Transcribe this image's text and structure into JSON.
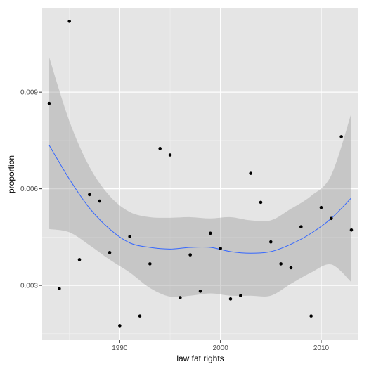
{
  "chart_data": {
    "type": "scatter",
    "title": "",
    "xlabel": "law fat rights",
    "ylabel": "proportion",
    "xlim": [
      1982.3,
      2013.7
    ],
    "ylim": [
      0.0013,
      0.0116
    ],
    "x_ticks": [
      1990,
      2000,
      2010
    ],
    "x_tick_labels": [
      "1990",
      "2000",
      "2010"
    ],
    "y_ticks": [
      0.003,
      0.006,
      0.009
    ],
    "y_tick_labels": [
      "0.003",
      "0.006",
      "0.009"
    ],
    "grid": true,
    "legend": "none",
    "colors": {
      "panel": "#e5e5e5",
      "grid_major": "#ffffff",
      "grid_minor": "#f2f2f2",
      "points": "#000000",
      "smooth_line": "#3366ff",
      "confidence_band": "#999999"
    },
    "points": {
      "x": [
        1983,
        1984,
        1985,
        1986,
        1987,
        1988,
        1989,
        1990,
        1991,
        1992,
        1993,
        1994,
        1995,
        1996,
        1997,
        1998,
        1999,
        2000,
        2001,
        2002,
        2003,
        2004,
        2005,
        2006,
        2007,
        2008,
        2009,
        2010,
        2011,
        2012,
        2013
      ],
      "y": [
        0.00865,
        0.0029,
        0.0112,
        0.0038,
        0.00582,
        0.00562,
        0.00402,
        0.00175,
        0.00452,
        0.00205,
        0.00367,
        0.00725,
        0.00705,
        0.00262,
        0.00395,
        0.00282,
        0.00462,
        0.00415,
        0.00258,
        0.00268,
        0.00648,
        0.00558,
        0.00435,
        0.00367,
        0.00355,
        0.00482,
        0.00205,
        0.00542,
        0.00508,
        0.00762,
        0.00472
      ]
    },
    "smooth": {
      "x": [
        1983,
        1985,
        1987,
        1989,
        1991,
        1993,
        1995,
        1997,
        1999,
        2001,
        2003,
        2005,
        2007,
        2009,
        2011,
        2013
      ],
      "y": [
        0.00735,
        0.0063,
        0.0054,
        0.00475,
        0.00432,
        0.00418,
        0.00413,
        0.00418,
        0.00418,
        0.00405,
        0.004,
        0.00405,
        0.00428,
        0.00462,
        0.00508,
        0.00572
      ],
      "upper": [
        0.01008,
        0.0081,
        0.00668,
        0.00578,
        0.00528,
        0.00512,
        0.0051,
        0.00512,
        0.00508,
        0.00512,
        0.00502,
        0.00502,
        0.00538,
        0.00578,
        0.00642,
        0.00835
      ],
      "lower": [
        0.00475,
        0.00465,
        0.00425,
        0.0038,
        0.0034,
        0.00292,
        0.00265,
        0.00268,
        0.00275,
        0.00268,
        0.00268,
        0.00268,
        0.00305,
        0.0034,
        0.00365,
        0.0031
      ]
    }
  }
}
